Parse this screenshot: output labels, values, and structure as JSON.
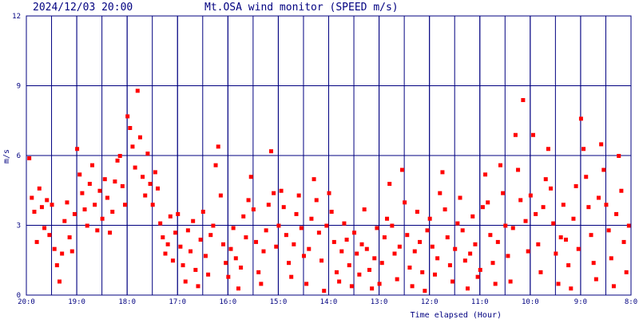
{
  "header": {
    "timestamp": "2024/12/03 20:00",
    "title": "Mt.OSA wind monitor (SPEED m/s)"
  },
  "colors": {
    "axis": "#000080",
    "grid": "#000080",
    "text": "#000080",
    "points": "#ff0000",
    "background": "#ffffff"
  },
  "chart_data": {
    "type": "scatter",
    "title": "Mt.OSA wind monitor (SPEED m/s)",
    "xlabel": "Time elapsed (Hour)",
    "ylabel": "m/s",
    "xlim": [
      0,
      12
    ],
    "ylim": [
      0,
      12
    ],
    "x_direction": "time descending left to right (elapsed hours from 20:00)",
    "x_ticks": [
      {
        "value": 0,
        "label": "20:0"
      },
      {
        "value": 1,
        "label": "19:0"
      },
      {
        "value": 2,
        "label": "18:0"
      },
      {
        "value": 3,
        "label": "17:0"
      },
      {
        "value": 4,
        "label": "16:0"
      },
      {
        "value": 5,
        "label": "15:0"
      },
      {
        "value": 6,
        "label": "14:0"
      },
      {
        "value": 7,
        "label": "13:0"
      },
      {
        "value": 8,
        "label": "12:0"
      },
      {
        "value": 9,
        "label": "11:0"
      },
      {
        "value": 10,
        "label": "10:0"
      },
      {
        "value": 11,
        "label": "9:0"
      },
      {
        "value": 12,
        "label": "8:0"
      }
    ],
    "y_ticks": [
      {
        "value": 0,
        "label": "0"
      },
      {
        "value": 3,
        "label": "3"
      },
      {
        "value": 6,
        "label": "6"
      },
      {
        "value": 9,
        "label": "9"
      },
      {
        "value": 12,
        "label": "12"
      }
    ],
    "grid": true,
    "legend": "none",
    "series": [
      {
        "values": [
          [
            0.05,
            5.9
          ],
          [
            0.1,
            4.2
          ],
          [
            0.15,
            3.6
          ],
          [
            0.2,
            2.3
          ],
          [
            0.25,
            4.6
          ],
          [
            0.3,
            3.8
          ],
          [
            0.35,
            2.9
          ],
          [
            0.4,
            4.1
          ],
          [
            0.45,
            2.6
          ],
          [
            0.5,
            3.9
          ],
          [
            0.55,
            2.0
          ],
          [
            0.6,
            1.3
          ],
          [
            0.65,
            0.6
          ],
          [
            0.7,
            1.8
          ],
          [
            0.75,
            3.2
          ],
          [
            0.8,
            4.0
          ],
          [
            0.85,
            2.5
          ],
          [
            0.9,
            1.9
          ],
          [
            0.95,
            3.5
          ],
          [
            1.0,
            6.3
          ],
          [
            1.05,
            5.2
          ],
          [
            1.1,
            4.4
          ],
          [
            1.15,
            3.7
          ],
          [
            1.2,
            3.0
          ],
          [
            1.25,
            4.8
          ],
          [
            1.3,
            5.6
          ],
          [
            1.35,
            3.9
          ],
          [
            1.4,
            2.8
          ],
          [
            1.45,
            4.5
          ],
          [
            1.5,
            3.3
          ],
          [
            1.55,
            5.0
          ],
          [
            1.6,
            4.2
          ],
          [
            1.65,
            2.7
          ],
          [
            1.7,
            3.6
          ],
          [
            1.75,
            4.9
          ],
          [
            1.8,
            5.8
          ],
          [
            1.85,
            6.0
          ],
          [
            1.9,
            4.7
          ],
          [
            1.95,
            3.9
          ],
          [
            2.0,
            7.7
          ],
          [
            2.05,
            7.2
          ],
          [
            2.1,
            6.4
          ],
          [
            2.15,
            5.5
          ],
          [
            2.2,
            8.8
          ],
          [
            2.25,
            6.8
          ],
          [
            2.3,
            5.1
          ],
          [
            2.35,
            4.3
          ],
          [
            2.4,
            6.1
          ],
          [
            2.45,
            4.8
          ],
          [
            2.5,
            3.9
          ],
          [
            2.55,
            5.3
          ],
          [
            2.6,
            4.6
          ],
          [
            2.65,
            3.1
          ],
          [
            2.7,
            2.5
          ],
          [
            2.75,
            1.8
          ],
          [
            2.8,
            2.2
          ],
          [
            2.85,
            3.4
          ],
          [
            2.9,
            1.5
          ],
          [
            2.95,
            2.7
          ],
          [
            3.0,
            3.5
          ],
          [
            3.05,
            2.1
          ],
          [
            3.1,
            1.3
          ],
          [
            3.15,
            0.6
          ],
          [
            3.2,
            2.8
          ],
          [
            3.25,
            1.9
          ],
          [
            3.3,
            3.2
          ],
          [
            3.35,
            1.1
          ],
          [
            3.4,
            0.4
          ],
          [
            3.45,
            2.4
          ],
          [
            3.5,
            3.6
          ],
          [
            3.55,
            1.7
          ],
          [
            3.6,
            0.9
          ],
          [
            3.65,
            2.6
          ],
          [
            3.7,
            3.0
          ],
          [
            3.75,
            5.6
          ],
          [
            3.8,
            6.4
          ],
          [
            3.85,
            4.3
          ],
          [
            3.9,
            2.2
          ],
          [
            3.95,
            1.4
          ],
          [
            4.0,
            0.8
          ],
          [
            4.05,
            2.0
          ],
          [
            4.1,
            2.9
          ],
          [
            4.15,
            1.6
          ],
          [
            4.2,
            0.3
          ],
          [
            4.25,
            1.2
          ],
          [
            4.3,
            3.4
          ],
          [
            4.35,
            2.5
          ],
          [
            4.4,
            4.1
          ],
          [
            4.45,
            5.1
          ],
          [
            4.5,
            3.7
          ],
          [
            4.55,
            2.3
          ],
          [
            4.6,
            1.0
          ],
          [
            4.65,
            0.5
          ],
          [
            4.7,
            1.9
          ],
          [
            4.75,
            2.8
          ],
          [
            4.8,
            3.9
          ],
          [
            4.85,
            6.2
          ],
          [
            4.9,
            4.4
          ],
          [
            4.95,
            2.1
          ],
          [
            5.0,
            3.0
          ],
          [
            5.05,
            4.5
          ],
          [
            5.1,
            3.8
          ],
          [
            5.15,
            2.6
          ],
          [
            5.2,
            1.4
          ],
          [
            5.25,
            0.8
          ],
          [
            5.3,
            2.2
          ],
          [
            5.35,
            3.5
          ],
          [
            5.4,
            4.3
          ],
          [
            5.45,
            2.9
          ],
          [
            5.5,
            1.7
          ],
          [
            5.55,
            0.5
          ],
          [
            5.6,
            2.0
          ],
          [
            5.65,
            3.3
          ],
          [
            5.7,
            5.0
          ],
          [
            5.75,
            4.1
          ],
          [
            5.8,
            2.7
          ],
          [
            5.85,
            1.5
          ],
          [
            5.9,
            0.2
          ],
          [
            5.95,
            3.0
          ],
          [
            6.0,
            4.4
          ],
          [
            6.05,
            3.6
          ],
          [
            6.1,
            2.3
          ],
          [
            6.15,
            1.0
          ],
          [
            6.2,
            0.6
          ],
          [
            6.25,
            1.9
          ],
          [
            6.3,
            3.1
          ],
          [
            6.35,
            2.4
          ],
          [
            6.4,
            1.3
          ],
          [
            6.45,
            0.4
          ],
          [
            6.5,
            2.7
          ],
          [
            6.55,
            1.8
          ],
          [
            6.6,
            0.9
          ],
          [
            6.65,
            2.2
          ],
          [
            6.7,
            3.7
          ],
          [
            6.75,
            2.0
          ],
          [
            6.8,
            1.1
          ],
          [
            6.85,
            0.3
          ],
          [
            6.9,
            1.6
          ],
          [
            6.95,
            2.9
          ],
          [
            7.0,
            0.5
          ],
          [
            7.05,
            1.4
          ],
          [
            7.1,
            2.5
          ],
          [
            7.15,
            3.3
          ],
          [
            7.2,
            4.8
          ],
          [
            7.25,
            3.0
          ],
          [
            7.3,
            1.8
          ],
          [
            7.35,
            0.7
          ],
          [
            7.4,
            2.1
          ],
          [
            7.45,
            5.4
          ],
          [
            7.5,
            4.0
          ],
          [
            7.55,
            2.6
          ],
          [
            7.6,
            1.2
          ],
          [
            7.65,
            0.4
          ],
          [
            7.7,
            1.9
          ],
          [
            7.75,
            3.6
          ],
          [
            7.8,
            2.3
          ],
          [
            7.85,
            1.0
          ],
          [
            7.9,
            0.2
          ],
          [
            7.95,
            2.8
          ],
          [
            8.0,
            3.3
          ],
          [
            8.05,
            2.1
          ],
          [
            8.1,
            0.9
          ],
          [
            8.15,
            1.6
          ],
          [
            8.2,
            4.4
          ],
          [
            8.25,
            5.3
          ],
          [
            8.3,
            3.7
          ],
          [
            8.35,
            2.5
          ],
          [
            8.4,
            1.3
          ],
          [
            8.45,
            0.6
          ],
          [
            8.5,
            2.0
          ],
          [
            8.55,
            3.1
          ],
          [
            8.6,
            4.2
          ],
          [
            8.65,
            2.8
          ],
          [
            8.7,
            1.5
          ],
          [
            8.75,
            0.3
          ],
          [
            8.8,
            1.8
          ],
          [
            8.85,
            3.4
          ],
          [
            8.9,
            2.2
          ],
          [
            8.95,
            0.8
          ],
          [
            9.0,
            1.1
          ],
          [
            9.05,
            3.8
          ],
          [
            9.1,
            5.2
          ],
          [
            9.15,
            4.0
          ],
          [
            9.2,
            2.6
          ],
          [
            9.25,
            1.4
          ],
          [
            9.3,
            0.5
          ],
          [
            9.35,
            2.3
          ],
          [
            9.4,
            5.6
          ],
          [
            9.45,
            4.4
          ],
          [
            9.5,
            3.0
          ],
          [
            9.55,
            1.7
          ],
          [
            9.6,
            0.6
          ],
          [
            9.65,
            2.9
          ],
          [
            9.7,
            6.9
          ],
          [
            9.75,
            5.4
          ],
          [
            9.8,
            4.1
          ],
          [
            9.85,
            8.4
          ],
          [
            9.9,
            3.2
          ],
          [
            9.95,
            1.9
          ],
          [
            10.0,
            4.3
          ],
          [
            10.05,
            6.9
          ],
          [
            10.1,
            3.5
          ],
          [
            10.15,
            2.2
          ],
          [
            10.2,
            1.0
          ],
          [
            10.25,
            3.8
          ],
          [
            10.3,
            5.0
          ],
          [
            10.35,
            6.3
          ],
          [
            10.4,
            4.6
          ],
          [
            10.45,
            3.1
          ],
          [
            10.5,
            1.8
          ],
          [
            10.55,
            0.5
          ],
          [
            10.6,
            2.5
          ],
          [
            10.65,
            3.9
          ],
          [
            10.7,
            2.4
          ],
          [
            10.75,
            1.3
          ],
          [
            10.8,
            0.3
          ],
          [
            10.85,
            3.3
          ],
          [
            10.9,
            4.7
          ],
          [
            10.95,
            2.0
          ],
          [
            11.0,
            7.6
          ],
          [
            11.05,
            6.3
          ],
          [
            11.1,
            5.1
          ],
          [
            11.15,
            3.8
          ],
          [
            11.2,
            2.6
          ],
          [
            11.25,
            1.4
          ],
          [
            11.3,
            0.7
          ],
          [
            11.35,
            4.2
          ],
          [
            11.4,
            6.5
          ],
          [
            11.45,
            5.4
          ],
          [
            11.5,
            3.9
          ],
          [
            11.55,
            2.8
          ],
          [
            11.6,
            1.6
          ],
          [
            11.65,
            0.4
          ],
          [
            11.7,
            3.5
          ],
          [
            11.75,
            6.0
          ],
          [
            11.8,
            4.5
          ],
          [
            11.85,
            2.3
          ],
          [
            11.9,
            1.0
          ],
          [
            11.95,
            3.0
          ]
        ]
      }
    ]
  }
}
